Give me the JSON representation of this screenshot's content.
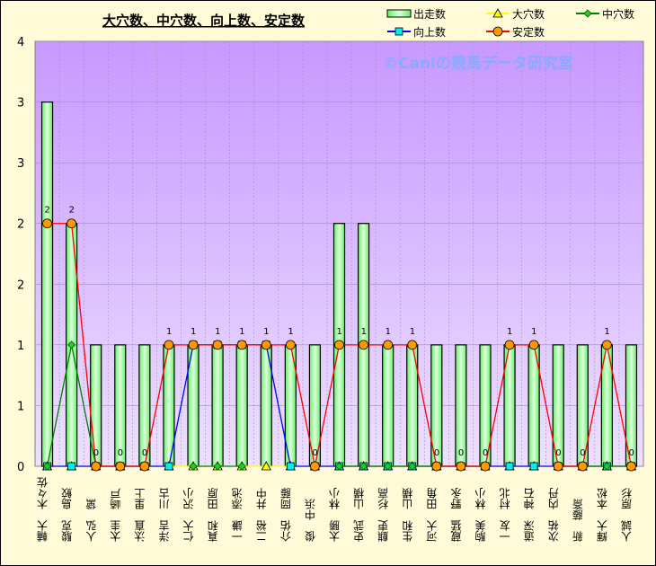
{
  "chart_data": {
    "type": "bar",
    "title": "大穴数、中穴数、向上数、安定数",
    "watermark": "©Caniの競馬データ研究室",
    "ylim": [
      0,
      3.5
    ],
    "yticks": [
      0,
      0.5,
      1,
      1.5,
      2,
      2.5,
      3,
      3.5
    ],
    "ytick_labels": [
      "0",
      "1",
      "1",
      "2",
      "2",
      "3",
      "3",
      "4"
    ],
    "grid": true,
    "legend_position": "top-right",
    "categories": [
      "佐々木 大輔",
      "鮫島 克駿",
      "黛 弘人",
      "戸崎 圭太",
      "上里 直汰",
      "古川 吉洋",
      "小沢 大仁",
      "原田 和真",
      "池添 謙一",
      "中井 裕二",
      "藤岡 佑介",
      "浜中 俊",
      "小林 勝太",
      "横山 武史",
      "高杉 吏麒",
      "横山 和生",
      "角田 大河",
      "永野 猛蔵",
      "小林 美駒",
      "北村 友一",
      "石神 深道",
      "丹内 祐次",
      "斎藤 新",
      "松本 大輝",
      "杉原 誠人"
    ],
    "series": [
      {
        "name": "出走数",
        "kind": "bar",
        "color": "#ccffcc",
        "values": [
          3,
          2,
          1,
          1,
          1,
          1,
          1,
          1,
          1,
          1,
          1,
          1,
          2,
          2,
          1,
          1,
          1,
          1,
          1,
          1,
          1,
          1,
          1,
          1,
          1
        ]
      },
      {
        "name": "大穴数",
        "kind": "line",
        "color": "#ffff00",
        "marker": "triangle",
        "values": [
          0,
          0,
          0,
          0,
          0,
          0,
          0,
          0,
          0,
          0,
          0,
          0,
          0,
          0,
          0,
          0,
          0,
          0,
          0,
          0,
          0,
          0,
          0,
          0,
          0
        ]
      },
      {
        "name": "向上数",
        "kind": "line",
        "color": "#0000ff",
        "marker": "square",
        "values": [
          0,
          0,
          0,
          0,
          0,
          0,
          1,
          1,
          1,
          1,
          0,
          0,
          0,
          0,
          0,
          0,
          0,
          0,
          0,
          0,
          0,
          0,
          0,
          0,
          0
        ]
      },
      {
        "name": "中穴数",
        "kind": "line",
        "color": "#008000",
        "marker": "diamond",
        "values": [
          0,
          1,
          0,
          0,
          0,
          null,
          0,
          0,
          0,
          null,
          null,
          null,
          0,
          0,
          0,
          0,
          0,
          0,
          0,
          null,
          null,
          0,
          0,
          0,
          0
        ]
      },
      {
        "name": "安定数",
        "kind": "line",
        "color": "#ff0000",
        "marker": "circle",
        "values": [
          2,
          2,
          0,
          0,
          0,
          1,
          1,
          1,
          1,
          1,
          1,
          0,
          1,
          1,
          1,
          1,
          0,
          0,
          0,
          1,
          1,
          0,
          0,
          1,
          0
        ],
        "data_labels": true
      }
    ],
    "legend_order": [
      "出走数",
      "大穴数",
      "中穴数",
      "向上数",
      "安定数"
    ]
  }
}
